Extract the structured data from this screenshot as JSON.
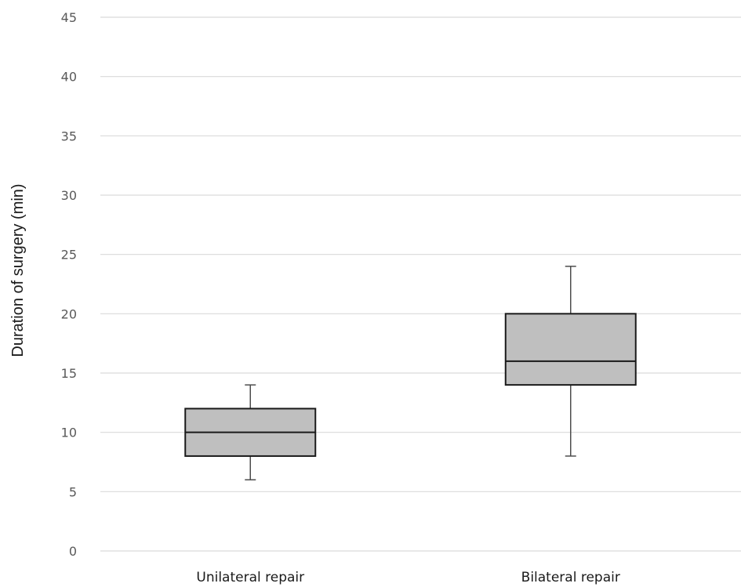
{
  "chart_data": {
    "type": "boxplot",
    "title": "",
    "xlabel": "",
    "ylabel": "Duration of surgery (min)",
    "ylim": [
      0,
      45
    ],
    "yticks": [
      0,
      5,
      10,
      15,
      20,
      25,
      30,
      35,
      40,
      45
    ],
    "grid": true,
    "legend": "none",
    "categories": [
      "Unilateral repair",
      "Bilateral repair"
    ],
    "boxes": [
      {
        "category": "Unilateral repair",
        "min": 6,
        "q1": 8,
        "median": 10,
        "q3": 12,
        "max": 14
      },
      {
        "category": "Bilateral repair",
        "min": 8,
        "q1": 14,
        "median": 16,
        "q3": 20,
        "max": 24
      }
    ],
    "colors": {
      "box_fill": "#bfbfbf",
      "box_stroke": "#1a1a1a",
      "whisker": "#4d4d4d",
      "grid": "#d9d9d9"
    }
  }
}
